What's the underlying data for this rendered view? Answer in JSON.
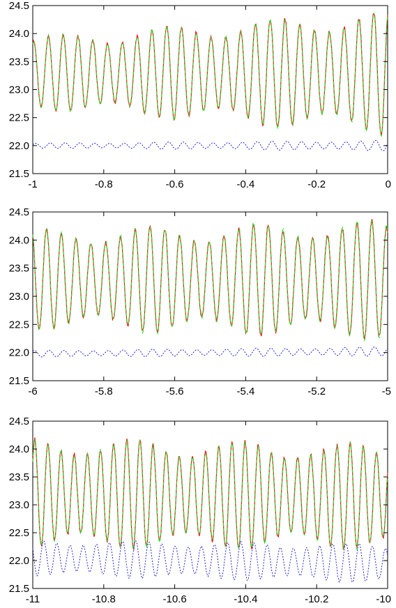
{
  "colors": {
    "series_red": "#ee1111",
    "series_green": "#22dd22",
    "series_blue": "#2222cc",
    "axis": "#000000"
  },
  "chart_data": [
    {
      "type": "line",
      "title": "",
      "xlabel": "",
      "ylabel": "",
      "xlim": [
        -1,
        0
      ],
      "ylim": [
        21.5,
        24.5
      ],
      "x_ticks": [
        "-1",
        "-0.8",
        "-0.6",
        "-0.4",
        "-0.2",
        "0"
      ],
      "y_ticks": [
        "21.5",
        "22.0",
        "22.5",
        "23.0",
        "23.5",
        "24.0",
        "24.5"
      ],
      "series": [
        {
          "color": "#ee1111",
          "style": "solid",
          "approx": {
            "cycles": 24,
            "start_mean": 23.3,
            "end_mean": 23.3,
            "start_amp": 0.55,
            "end_amp": 0.95,
            "phase": 1.2
          }
        },
        {
          "color": "#22dd22",
          "style": "dashed",
          "approx": {
            "cycles": 24,
            "start_mean": 23.3,
            "end_mean": 23.3,
            "start_amp": 0.55,
            "end_amp": 0.95,
            "phase": 1.2
          }
        },
        {
          "color": "#2222cc",
          "style": "dotted",
          "approx": {
            "cycles": 24,
            "start_mean": 22.0,
            "end_mean": 22.0,
            "start_amp": 0.04,
            "end_amp": 0.08,
            "phase": 0.4
          }
        }
      ]
    },
    {
      "type": "line",
      "title": "",
      "xlabel": "",
      "ylabel": "",
      "xlim": [
        -6,
        -5
      ],
      "ylim": [
        21.5,
        24.5
      ],
      "x_ticks": [
        "-6",
        "-5.8",
        "-5.6",
        "-5.4",
        "-5.2",
        "-5"
      ],
      "y_ticks": [
        "21.5",
        "22.0",
        "22.5",
        "23.0",
        "23.5",
        "24.0",
        "24.5"
      ],
      "series": [
        {
          "color": "#ee1111",
          "style": "solid",
          "approx": {
            "cycles": 24,
            "start_mean": 23.3,
            "end_mean": 23.3,
            "start_amp": 0.75,
            "end_amp": 0.9,
            "phase": 2.0
          }
        },
        {
          "color": "#22dd22",
          "style": "dashed",
          "approx": {
            "cycles": 24,
            "start_mean": 23.3,
            "end_mean": 23.3,
            "start_amp": 0.75,
            "end_amp": 0.9,
            "phase": 2.0
          }
        },
        {
          "color": "#2222cc",
          "style": "dotted",
          "approx": {
            "cycles": 24,
            "start_mean": 21.98,
            "end_mean": 22.02,
            "start_amp": 0.05,
            "end_amp": 0.07,
            "phase": 0.9
          }
        }
      ]
    },
    {
      "type": "line",
      "title": "",
      "xlabel": "",
      "ylabel": "",
      "xlim": [
        -11,
        -10
      ],
      "ylim": [
        21.5,
        24.5
      ],
      "x_ticks": [
        "-11",
        "-10.8",
        "-10.6",
        "-10.4",
        "-10.2",
        "-10"
      ],
      "y_ticks": [
        "21.5",
        "22.0",
        "22.5",
        "23.0",
        "23.5",
        "24.0",
        "24.5"
      ],
      "series": [
        {
          "color": "#ee1111",
          "style": "solid",
          "approx": {
            "cycles": 27,
            "start_mean": 23.2,
            "end_mean": 23.15,
            "start_amp": 0.85,
            "end_amp": 0.8,
            "phase": 0.6
          }
        },
        {
          "color": "#22dd22",
          "style": "dashed",
          "approx": {
            "cycles": 27,
            "start_mean": 23.2,
            "end_mean": 23.15,
            "start_amp": 0.85,
            "end_amp": 0.8,
            "phase": 0.6
          }
        },
        {
          "color": "#2222cc",
          "style": "dotted",
          "approx": {
            "cycles": 27,
            "start_mean": 22.05,
            "end_mean": 21.95,
            "start_amp": 0.28,
            "end_amp": 0.3,
            "phase": 2.6
          }
        }
      ]
    }
  ]
}
